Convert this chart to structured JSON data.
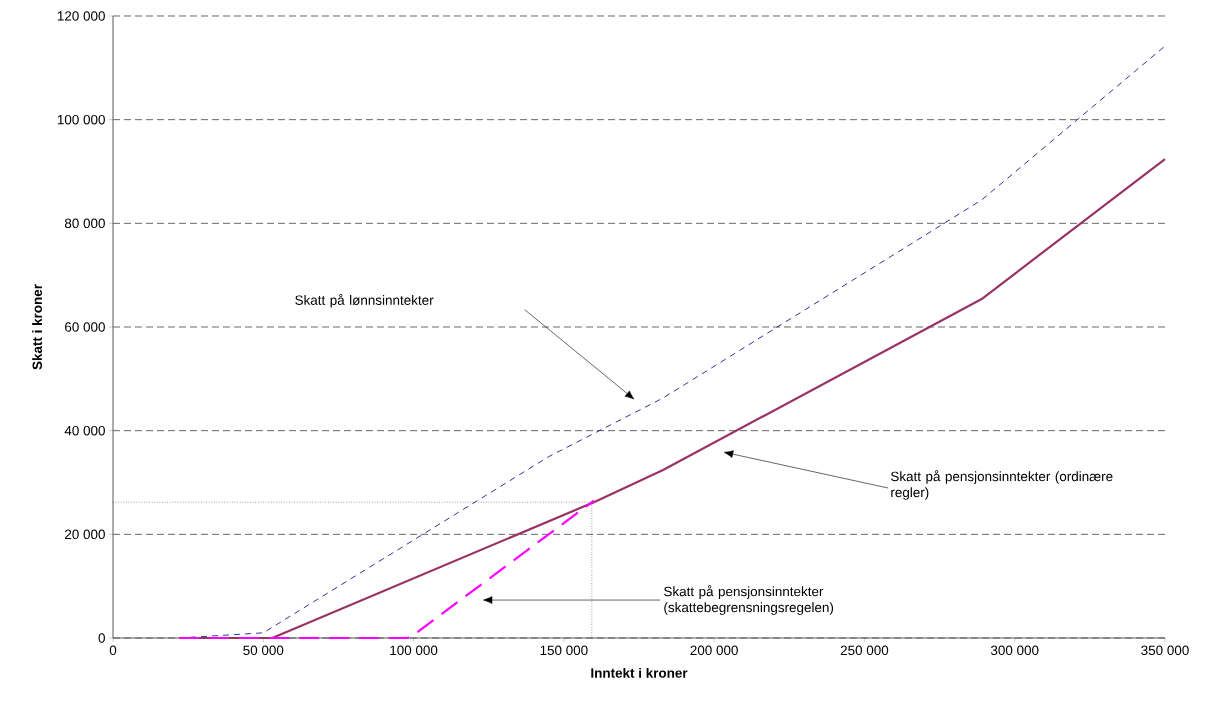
{
  "chart_data": {
    "type": "line",
    "xlabel": "Inntekt i kroner",
    "ylabel": "Skatt i kroner",
    "xlim": [
      0,
      350000
    ],
    "ylim": [
      0,
      120000
    ],
    "xticks": [
      0,
      {
        "value": 50000,
        "label": "50 000"
      },
      {
        "value": 100000,
        "label": "100 000"
      },
      {
        "value": 150000,
        "label": "150 000"
      },
      {
        "value": 200000,
        "label": "200 000"
      },
      {
        "value": 250000,
        "label": "250 000"
      },
      {
        "value": 300000,
        "label": "300 000"
      },
      {
        "value": 350000,
        "label": "350 000"
      }
    ],
    "yticks": [
      0,
      {
        "value": 20000,
        "label": "20 000"
      },
      {
        "value": 40000,
        "label": "40 000"
      },
      {
        "value": 60000,
        "label": "60 000"
      },
      {
        "value": 80000,
        "label": "80 000"
      },
      {
        "value": 100000,
        "label": "100 000"
      },
      {
        "value": 120000,
        "label": "120 000"
      }
    ],
    "grid": "y",
    "marker": "none",
    "series": [
      {
        "color": "#000080",
        "line_style": "dashed",
        "x": [
          22000,
          50000,
          145000,
          183000,
          289000,
          350000
        ],
        "values": [
          0,
          1000,
          35000,
          46300,
          84500,
          114200
        ]
      },
      {
        "color": "#993366",
        "line_style": "solid",
        "x": [
          22000,
          53000,
          160000,
          183000,
          289000,
          350000
        ],
        "values": [
          0,
          0,
          26200,
          32400,
          65400,
          92400
        ]
      },
      {
        "color": "#ff00ff",
        "line_style": "dashed",
        "x": [
          22000,
          98000,
          100000,
          160000
        ],
        "values": [
          0,
          0,
          600,
          26500
        ]
      }
    ],
    "ref_lines": [
      {
        "axis": "y",
        "value": 26200,
        "color": "#000000",
        "line_style": "dotted"
      },
      {
        "axis": "x",
        "value": 159300,
        "color": "#000000",
        "line_style": "dotted"
      }
    ],
    "annotations": [
      "Skatt på lønnsinntekter",
      "Skatt på pensjonsinntekter (ordinære regler)",
      "Skatt på pensjonsinntekter (skattebegrensningsregelen)"
    ]
  }
}
